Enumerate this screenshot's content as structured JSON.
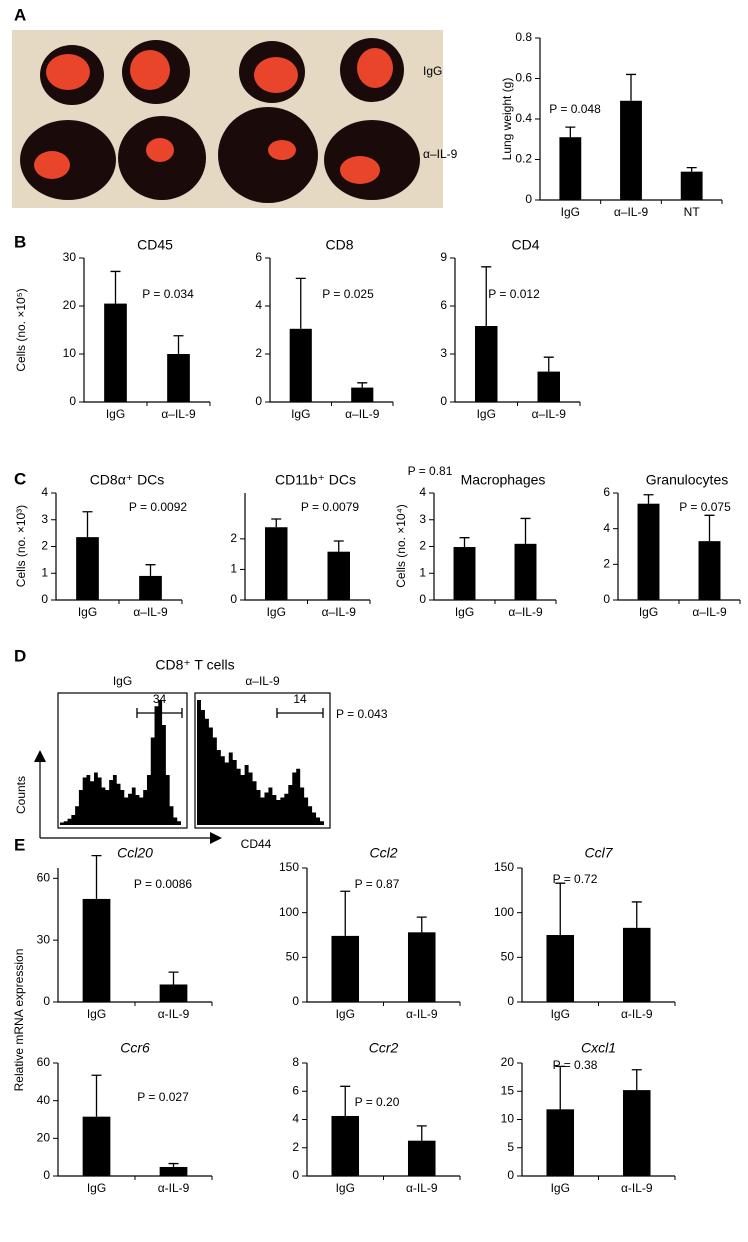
{
  "panels": [
    "A",
    "B",
    "C",
    "D",
    "E"
  ],
  "photo": {
    "row_labels": [
      "IgG",
      "α–IL-9"
    ]
  },
  "chart_data": [
    {
      "type": "bar",
      "ylabel": "Lung weight (g)",
      "categories": [
        "IgG",
        "α–IL-9",
        "NT"
      ],
      "values": [
        0.31,
        0.49,
        0.14
      ],
      "errors": [
        0.05,
        0.13,
        0.02
      ],
      "color": "#000000",
      "ylim": [
        0,
        0.8
      ],
      "yticks": [
        0,
        0.2,
        0.4,
        0.6,
        0.8
      ],
      "annotation": "P = 0.048"
    },
    {
      "type": "bar",
      "title": "CD45",
      "ylabel": "Cells (no. ×10⁵)",
      "categories": [
        "IgG",
        "α–IL-9"
      ],
      "values": [
        20.5,
        10
      ],
      "errors": [
        6.7,
        3.8
      ],
      "color": "#000000",
      "ylim": [
        0,
        30
      ],
      "yticks": [
        0,
        10,
        20,
        30
      ],
      "annotation": "P = 0.034"
    },
    {
      "type": "bar",
      "title": "CD8",
      "categories": [
        "IgG",
        "α–IL-9"
      ],
      "values": [
        3.05,
        0.6
      ],
      "errors": [
        2.1,
        0.2
      ],
      "color": "#000000",
      "ylim": [
        0,
        6
      ],
      "yticks": [
        0,
        2,
        4,
        6
      ],
      "annotation": "P = 0.025"
    },
    {
      "type": "bar",
      "title": "CD4",
      "categories": [
        "IgG",
        "α–IL-9"
      ],
      "values": [
        4.75,
        1.9
      ],
      "errors": [
        3.7,
        0.9
      ],
      "color": "#000000",
      "ylim": [
        0,
        9
      ],
      "yticks": [
        0,
        3,
        6,
        9
      ],
      "annotation": "P = 0.012"
    },
    {
      "type": "bar",
      "title": "CD8α⁺ DCs",
      "ylabel": "Cells (no. ×10³)",
      "categories": [
        "IgG",
        "α–IL-9"
      ],
      "values": [
        2.35,
        0.9
      ],
      "errors": [
        0.95,
        0.42
      ],
      "color": "#000000",
      "ylim": [
        0,
        4
      ],
      "yticks": [
        0,
        1,
        2,
        3,
        4
      ],
      "annotation": "P = 0.0092"
    },
    {
      "type": "bar",
      "title": "CD11b⁺ DCs",
      "categories": [
        "IgG",
        "α–IL-9"
      ],
      "values": [
        2.38,
        1.58
      ],
      "errors": [
        0.27,
        0.35
      ],
      "color": "#000000",
      "ylim": [
        0,
        3.5
      ],
      "yticks": [
        0,
        1,
        2
      ],
      "annotation": "P = 0.0079"
    },
    {
      "type": "bar",
      "title": "Macrophages",
      "ylabel": "Cells (no. ×10⁴)",
      "categories": [
        "IgG",
        "α–IL-9"
      ],
      "values": [
        1.98,
        2.1
      ],
      "errors": [
        0.35,
        0.95
      ],
      "color": "#000000",
      "ylim": [
        0,
        4
      ],
      "yticks": [
        0,
        1,
        2,
        3,
        4
      ],
      "annotation": "P = 0.81"
    },
    {
      "type": "bar",
      "title": "Granulocytes",
      "categories": [
        "IgG",
        "α–IL-9"
      ],
      "values": [
        5.4,
        3.3
      ],
      "errors": [
        0.5,
        1.45
      ],
      "color": "#000000",
      "ylim": [
        0,
        6
      ],
      "yticks": [
        0,
        2,
        4,
        6
      ],
      "annotation": "P = 0.075"
    },
    {
      "type": "histogram",
      "title": "CD8⁺ T cells",
      "subtitle": "IgG",
      "xlabel": "CD44",
      "ylabel": "Counts",
      "values": [
        2,
        3,
        5,
        8,
        15,
        28,
        38,
        40,
        35,
        42,
        38,
        30,
        28,
        36,
        40,
        33,
        28,
        22,
        25,
        30,
        24,
        22,
        28,
        40,
        70,
        95,
        100,
        80,
        40,
        15,
        6,
        3
      ],
      "color": "#000000",
      "ylim": [
        0,
        100
      ],
      "gate": 34
    },
    {
      "type": "histogram",
      "subtitle": "α–IL-9",
      "values": [
        100,
        92,
        85,
        78,
        70,
        60,
        55,
        50,
        58,
        52,
        45,
        40,
        48,
        42,
        35,
        28,
        22,
        26,
        30,
        24,
        20,
        22,
        25,
        32,
        42,
        45,
        30,
        22,
        15,
        10,
        6,
        3
      ],
      "color": "#000000",
      "ylim": [
        0,
        100
      ],
      "gate": 14,
      "annotation": "P = 0.043"
    },
    {
      "type": "bar",
      "title": "Ccl20",
      "ylabel": "Relative mRNA expression",
      "categories": [
        "IgG",
        "α-IL-9"
      ],
      "values": [
        50,
        8.5
      ],
      "errors": [
        21,
        6
      ],
      "color": "#000000",
      "ylim": [
        0,
        65
      ],
      "yticks": [
        0,
        30,
        60
      ],
      "annotation": "P = 0.0086"
    },
    {
      "type": "bar",
      "title": "Ccl2",
      "categories": [
        "IgG",
        "α-IL-9"
      ],
      "values": [
        74,
        78
      ],
      "errors": [
        50,
        17
      ],
      "color": "#000000",
      "ylim": [
        0,
        150
      ],
      "yticks": [
        0,
        50,
        100,
        150
      ],
      "annotation": "P = 0.87"
    },
    {
      "type": "bar",
      "title": "Ccl7",
      "categories": [
        "IgG",
        "α-IL-9"
      ],
      "values": [
        75,
        83
      ],
      "errors": [
        58,
        29
      ],
      "color": "#000000",
      "ylim": [
        0,
        150
      ],
      "yticks": [
        0,
        50,
        100,
        150
      ],
      "annotation": "P = 0.72"
    },
    {
      "type": "bar",
      "title": "Ccr6",
      "categories": [
        "IgG",
        "α-IL-9"
      ],
      "values": [
        31.5,
        4.8
      ],
      "errors": [
        22,
        1.8
      ],
      "color": "#000000",
      "ylim": [
        0,
        60
      ],
      "yticks": [
        0,
        20,
        40,
        60
      ],
      "annotation": "P = 0.027"
    },
    {
      "type": "bar",
      "title": "Ccr2",
      "categories": [
        "IgG",
        "α-IL-9"
      ],
      "values": [
        4.25,
        2.5
      ],
      "errors": [
        2.1,
        1.05
      ],
      "color": "#000000",
      "ylim": [
        0,
        8
      ],
      "yticks": [
        0,
        2,
        4,
        6,
        8
      ],
      "annotation": "P = 0.20"
    },
    {
      "type": "bar",
      "title": "Cxcl1",
      "categories": [
        "IgG",
        "α-IL-9"
      ],
      "values": [
        11.8,
        15.2
      ],
      "errors": [
        7.6,
        3.6
      ],
      "color": "#000000",
      "ylim": [
        0,
        20
      ],
      "yticks": [
        0,
        5,
        10,
        15,
        20
      ],
      "annotation": "P = 0.38"
    }
  ]
}
